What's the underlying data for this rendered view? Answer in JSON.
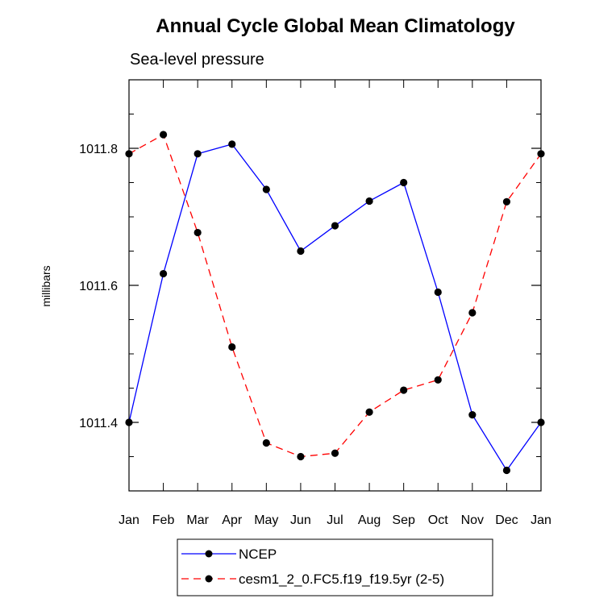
{
  "chart_data": {
    "type": "line",
    "title": "Annual Cycle Global Mean Climatology",
    "subtitle": "Sea-level pressure",
    "xlabel": "",
    "ylabel": "millibars",
    "categories": [
      "Jan",
      "Feb",
      "Mar",
      "Apr",
      "May",
      "Jun",
      "Jul",
      "Aug",
      "Sep",
      "Oct",
      "Nov",
      "Dec",
      "Jan"
    ],
    "ylim": [
      1011.3,
      1011.9
    ],
    "yticks": [
      1011.4,
      1011.6,
      1011.8
    ],
    "ytick_labels": [
      "1011.4",
      "1011.6",
      "1011.8"
    ],
    "yminor_step": 0.05,
    "grid": false,
    "legend_position": "bottom-center",
    "series": [
      {
        "name": "NCEP",
        "color": "#0000ff",
        "dash": "solid",
        "values": [
          1011.4,
          1011.617,
          1011.792,
          1011.806,
          1011.74,
          1011.65,
          1011.687,
          1011.723,
          1011.75,
          1011.59,
          1011.411,
          1011.33,
          1011.4
        ]
      },
      {
        "name": "cesm1_2_0.FC5.f19_f19.5yr (2-5)",
        "color": "#ff0000",
        "dash": "dashed",
        "values": [
          1011.792,
          1011.82,
          1011.677,
          1011.51,
          1011.37,
          1011.35,
          1011.355,
          1011.415,
          1011.447,
          1011.462,
          1011.56,
          1011.722,
          1011.792
        ]
      }
    ],
    "marker_color": "#000000"
  }
}
